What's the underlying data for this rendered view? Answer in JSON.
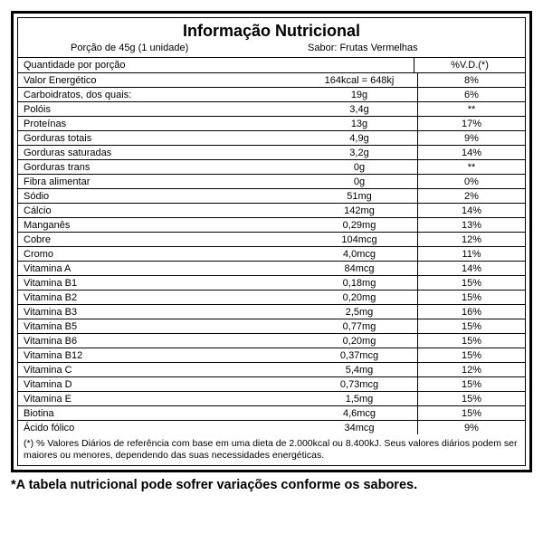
{
  "title": "Informação Nutricional",
  "serving": "Porção de 45g (1 unidade)",
  "flavor": "Sabor: Frutas Vermelhas",
  "header": {
    "left": "Quantidade por porção",
    "right": "%V.D.(*)"
  },
  "rows": [
    {
      "name": "Valor Energético",
      "amount": "164kcal = 648kj",
      "dv": "8%"
    },
    {
      "name": "Carboidratos, dos quais:",
      "amount": "19g",
      "dv": "6%"
    },
    {
      "name": "Polóis",
      "amount": "3,4g",
      "dv": "**"
    },
    {
      "name": "Proteínas",
      "amount": "13g",
      "dv": "17%"
    },
    {
      "name": "Gorduras totais",
      "amount": "4,9g",
      "dv": "9%"
    },
    {
      "name": "Gorduras saturadas",
      "amount": "3,2g",
      "dv": "14%"
    },
    {
      "name": "Gorduras trans",
      "amount": "0g",
      "dv": "**"
    },
    {
      "name": "Fibra alimentar",
      "amount": "0g",
      "dv": "0%"
    },
    {
      "name": "Sódio",
      "amount": "51mg",
      "dv": "2%"
    },
    {
      "name": "Cálcio",
      "amount": "142mg",
      "dv": "14%"
    },
    {
      "name": "Manganês",
      "amount": "0,29mg",
      "dv": "13%"
    },
    {
      "name": "Cobre",
      "amount": "104mcg",
      "dv": "12%"
    },
    {
      "name": "Cromo",
      "amount": "4,0mcg",
      "dv": "11%"
    },
    {
      "name": "Vitamina A",
      "amount": "84mcg",
      "dv": "14%"
    },
    {
      "name": "Vitamina B1",
      "amount": "0,18mg",
      "dv": "15%"
    },
    {
      "name": "Vitamina B2",
      "amount": "0,20mg",
      "dv": "15%"
    },
    {
      "name": "Vitamina B3",
      "amount": "2,5mg",
      "dv": "16%"
    },
    {
      "name": "Vitamina B5",
      "amount": "0,77mg",
      "dv": "15%"
    },
    {
      "name": "Vitamina B6",
      "amount": "0,20mg",
      "dv": "15%"
    },
    {
      "name": "Vitamina B12",
      "amount": "0,37mcg",
      "dv": "15%"
    },
    {
      "name": "Vitamina C",
      "amount": "5,4mg",
      "dv": "12%"
    },
    {
      "name": "Vitamina D",
      "amount": "0,73mcg",
      "dv": "15%"
    },
    {
      "name": "Vitamina E",
      "amount": "1,5mg",
      "dv": "15%"
    },
    {
      "name": "Biotina",
      "amount": "4,6mcg",
      "dv": "15%"
    },
    {
      "name": "Ácido fólico",
      "amount": "34mcg",
      "dv": "9%"
    }
  ],
  "footnote": "(*) % Valores Diários de referência com base em uma dieta de 2.000kcal ou 8.400kJ. Seus valores diários podem ser maiores ou menores, dependendo das suas necessidades energéticas.",
  "disclaimer": "*A tabela nutricional pode sofrer variações conforme os sabores.",
  "styling": {
    "border_color": "#000000",
    "background": "#ffffff",
    "title_fontsize": 18,
    "row_fontsize": 11,
    "footnote_fontsize": 10.5,
    "disclaimer_fontsize": 14.5
  }
}
